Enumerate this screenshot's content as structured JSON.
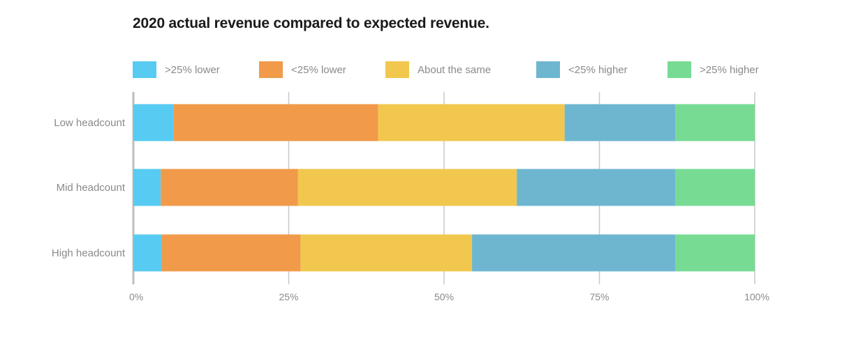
{
  "chart_data": {
    "type": "bar",
    "orientation": "horizontal",
    "stacked": true,
    "title": "2020 actual revenue compared to expected revenue.",
    "xlabel": "",
    "ylabel": "",
    "xlim": [
      0,
      100
    ],
    "x_ticks": [
      "0%",
      "25%",
      "50%",
      "75%",
      "100%"
    ],
    "x_tick_values": [
      0,
      25,
      50,
      75,
      100
    ],
    "grid": true,
    "legend_position": "top",
    "categories": [
      "Low headcount",
      "Mid headcount",
      "High headcount"
    ],
    "series": [
      {
        "name": ">25% lower",
        "color": "#57cbf2",
        "values": [
          6.5,
          4.4,
          4.6
        ]
      },
      {
        "name": "<25% lower",
        "color": "#f19a4a",
        "values": [
          32.9,
          22.1,
          22.3
        ]
      },
      {
        "name": "About the same",
        "color": "#f2c74e",
        "values": [
          30.0,
          35.2,
          27.6
        ]
      },
      {
        "name": "<25% higher",
        "color": "#6eb6d0",
        "values": [
          17.8,
          25.5,
          32.7
        ]
      },
      {
        "name": ">25% higher",
        "color": "#77db94",
        "values": [
          12.8,
          12.8,
          12.8
        ]
      }
    ]
  }
}
